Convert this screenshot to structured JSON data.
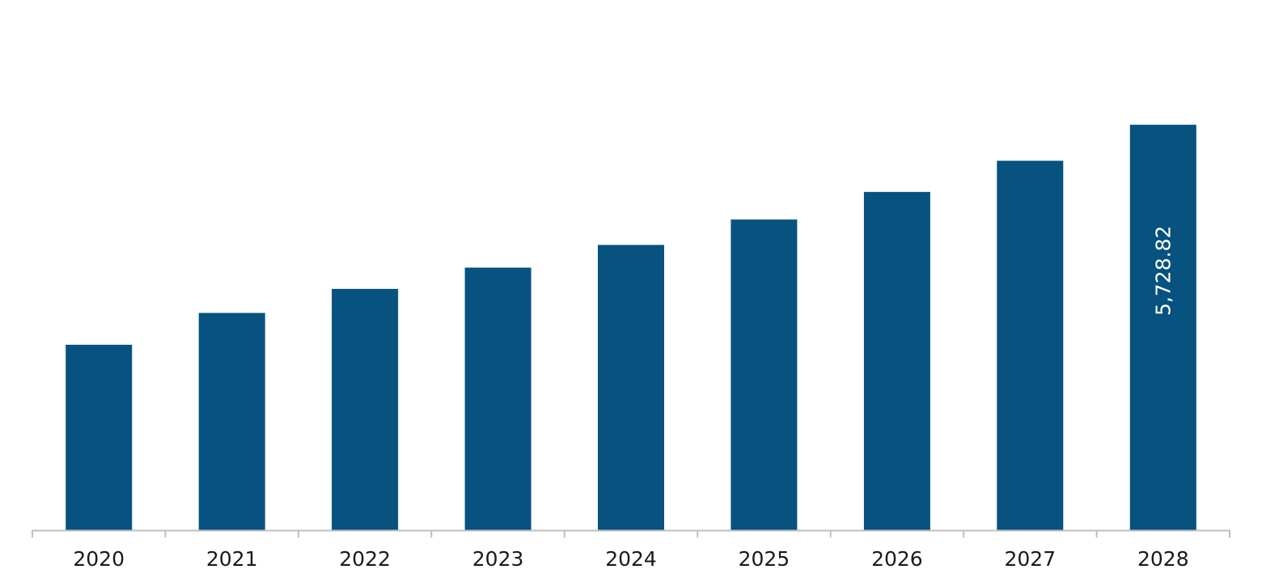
{
  "chart_data": {
    "type": "bar",
    "categories": [
      "2020",
      "2021",
      "2022",
      "2023",
      "2024",
      "2025",
      "2026",
      "2027",
      "2028"
    ],
    "values": [
      2620,
      3070,
      3410,
      3710,
      4030,
      4390,
      4780,
      5220,
      5728.82
    ],
    "data_labels": [
      "",
      "",
      "",
      "",
      "",
      "",
      "",
      "",
      "5,728.82"
    ],
    "title": "",
    "xlabel": "",
    "ylabel": "",
    "ylim": [
      0,
      7400
    ],
    "grid": false,
    "legend": "none",
    "bar_color": "#07527f",
    "axis_color": "#bfbfbf",
    "label_color": "#ffffff",
    "tick_label_color": "#1a1a1a"
  }
}
